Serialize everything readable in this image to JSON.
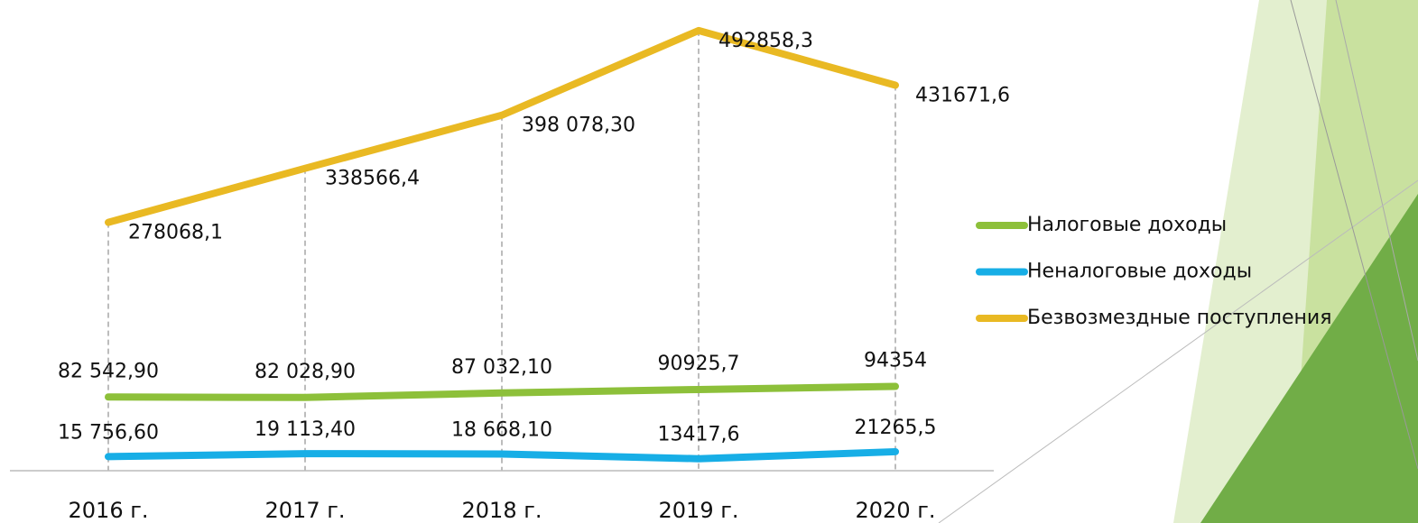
{
  "chart_data": {
    "type": "line",
    "categories": [
      "2016 г.",
      "2017 г.",
      "2018 г.",
      "2019 г.",
      "2020 г."
    ],
    "series": [
      {
        "name": "Налоговые доходы",
        "color": "#8dc03a",
        "values": [
          82542.9,
          82028.9,
          87032.1,
          90925.7,
          94354
        ],
        "value_labels": [
          "82 542,90",
          "82 028,90",
          "87 032,10",
          "90925,7",
          "94354"
        ]
      },
      {
        "name": "Неналоговые доходы",
        "color": "#17aee6",
        "values": [
          15756.6,
          19113.4,
          18668.1,
          13417.6,
          21265.5
        ],
        "value_labels": [
          "15 756,60",
          "19 113,40",
          "18 668,10",
          "13417,6",
          "21265,5"
        ]
      },
      {
        "name": "Безвозмездные поступления",
        "color": "#e9b923",
        "values": [
          278068.1,
          338566.4,
          398078.3,
          492858.3,
          431671.6
        ],
        "value_labels": [
          "278068,1",
          "338566,4",
          "398 078,30",
          "492858,3",
          "431671,6"
        ]
      }
    ],
    "ylim": [
      0,
      520000
    ]
  }
}
